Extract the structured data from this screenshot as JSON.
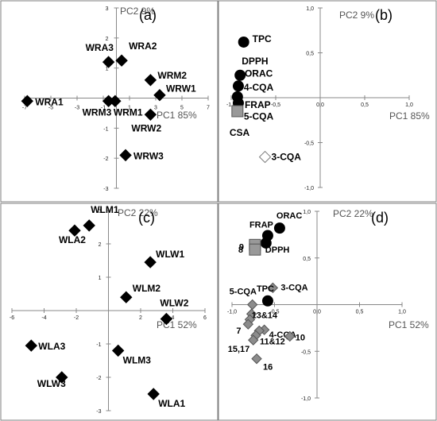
{
  "chart_data": [
    {
      "type": "scatter",
      "panel_label": "(a)",
      "pc_x": "PC1 85%",
      "pc_y": "PC2 9%",
      "xlim": [
        -7,
        7
      ],
      "ylim": [
        -3,
        3
      ],
      "x_ticks": [
        -7,
        -5,
        -3,
        -1,
        1,
        3,
        5,
        7
      ],
      "y_ticks": [
        -3,
        -2,
        -1,
        1,
        2,
        3
      ],
      "points": [
        {
          "label": "WRA1",
          "x": -6.8,
          "y": -0.1,
          "marker": "black-diamond"
        },
        {
          "label": "WRA3",
          "x": -0.6,
          "y": 1.2,
          "marker": "black-diamond"
        },
        {
          "label": "WRA2",
          "x": 0.4,
          "y": 1.25,
          "marker": "black-diamond"
        },
        {
          "label": "WRM2",
          "x": 2.6,
          "y": 0.6,
          "marker": "black-diamond"
        },
        {
          "label": "WRW1",
          "x": 3.3,
          "y": 0.1,
          "marker": "black-diamond"
        },
        {
          "label": "WRM3",
          "x": -0.6,
          "y": -0.1,
          "marker": "black-diamond"
        },
        {
          "label": "WRM1",
          "x": -0.1,
          "y": -0.1,
          "marker": "black-diamond"
        },
        {
          "label": "WRW2",
          "x": 2.6,
          "y": -0.55,
          "marker": "black-diamond"
        },
        {
          "label": "WRW3",
          "x": 0.7,
          "y": -1.9,
          "marker": "black-diamond"
        }
      ]
    },
    {
      "type": "scatter",
      "panel_label": "(b)",
      "pc_x": "PC1 85%",
      "pc_y": "PC2 9%",
      "xlim": [
        -1.0,
        1.0
      ],
      "ylim": [
        -1.0,
        1.0
      ],
      "x_ticks": [
        "-1,0",
        "-0,5",
        "0,0",
        "0,5",
        "1,0"
      ],
      "y_ticks": [
        "-1,0",
        "-0,5",
        "0,5",
        "1,0"
      ],
      "points": [
        {
          "label": "TPC",
          "x": -0.86,
          "y": 0.62,
          "marker": "black-circle"
        },
        {
          "label": "DPPH",
          "x": -0.9,
          "y": 0.25,
          "marker": "black-circle"
        },
        {
          "label": "ORAC",
          "x": -0.92,
          "y": 0.13,
          "marker": "black-circle"
        },
        {
          "label": "4-CQA",
          "x": -0.93,
          "y": 0.01,
          "marker": "black-circle"
        },
        {
          "label": "FRAP",
          "x": -0.92,
          "y": -0.06,
          "marker": "black-circle"
        },
        {
          "label": "5-CQA",
          "x": -0.93,
          "y": -0.12,
          "marker": "black-circle"
        },
        {
          "label": "CSA",
          "x": -0.93,
          "y": -0.15,
          "marker": "gray-square"
        },
        {
          "label": "3-CQA",
          "x": -0.62,
          "y": -0.66,
          "marker": "white-diamond"
        }
      ]
    },
    {
      "type": "scatter",
      "panel_label": "(c)",
      "pc_x": "PC1 52%",
      "pc_y": "PC2 22%",
      "xlim": [
        -6,
        6
      ],
      "ylim": [
        -3,
        3
      ],
      "x_ticks": [
        -6,
        -4,
        -2,
        2,
        4,
        6
      ],
      "y_ticks": [
        -3,
        -2,
        -1,
        1,
        2,
        3
      ],
      "points": [
        {
          "label": "WLA2",
          "x": -2.1,
          "y": 2.4,
          "marker": "black-diamond"
        },
        {
          "label": "WLM1",
          "x": -1.2,
          "y": 2.55,
          "marker": "black-diamond"
        },
        {
          "label": "WLW1",
          "x": 2.6,
          "y": 1.45,
          "marker": "black-diamond"
        },
        {
          "label": "WLM2",
          "x": 1.1,
          "y": 0.4,
          "marker": "black-diamond"
        },
        {
          "label": "WLW2",
          "x": 3.6,
          "y": -0.25,
          "marker": "black-diamond"
        },
        {
          "label": "WLA3",
          "x": -4.8,
          "y": -1.05,
          "marker": "black-diamond"
        },
        {
          "label": "WLM3",
          "x": 0.6,
          "y": -1.2,
          "marker": "black-diamond"
        },
        {
          "label": "WLW3",
          "x": -2.9,
          "y": -2.0,
          "marker": "black-diamond"
        },
        {
          "label": "WLA1",
          "x": 2.8,
          "y": -2.5,
          "marker": "black-diamond"
        }
      ]
    },
    {
      "type": "scatter",
      "panel_label": "(d)",
      "pc_x": "PC1 52%",
      "pc_y": "PC2 22%",
      "xlim": [
        -1.0,
        1.0
      ],
      "ylim": [
        -1.0,
        1.0
      ],
      "x_ticks": [
        "-1,0",
        "-0,5",
        "0,0",
        "0,5",
        "1,0"
      ],
      "y_ticks": [
        "-1,0",
        "-0,5",
        "0,5",
        "1,0"
      ],
      "points": [
        {
          "label": "ORAC",
          "x": -0.44,
          "y": 0.82,
          "marker": "black-circle"
        },
        {
          "label": "FRAP",
          "x": -0.58,
          "y": 0.74,
          "marker": "black-circle"
        },
        {
          "label": "DPPH",
          "x": -0.6,
          "y": 0.66,
          "marker": "black-circle"
        },
        {
          "label": "9",
          "x": -0.73,
          "y": 0.64,
          "marker": "gray-square"
        },
        {
          "label": "8",
          "x": -0.73,
          "y": 0.59,
          "marker": "gray-square"
        },
        {
          "label": "3-CQA",
          "x": -0.52,
          "y": 0.18,
          "marker": "gray-diamond"
        },
        {
          "label": "TPC",
          "x": -0.58,
          "y": 0.04,
          "marker": "black-circle"
        },
        {
          "label": "5-CQA",
          "x": -0.76,
          "y": 0.0,
          "marker": "gray-diamond"
        },
        {
          "label": "13&14",
          "x": -0.77,
          "y": -0.1,
          "marker": "gray-diamond"
        },
        {
          "label": "",
          "x": -0.79,
          "y": -0.16,
          "marker": "gray-diamond"
        },
        {
          "label": "7",
          "x": -0.81,
          "y": -0.21,
          "marker": "gray-diamond"
        },
        {
          "label": "4-CQA",
          "x": -0.62,
          "y": -0.27,
          "marker": "gray-diamond"
        },
        {
          "label": "10",
          "x": -0.32,
          "y": -0.34,
          "marker": "gray-diamond"
        },
        {
          "label": "",
          "x": -0.68,
          "y": -0.28,
          "marker": "gray-diamond"
        },
        {
          "label": "11&12",
          "x": -0.72,
          "y": -0.33,
          "marker": "gray-diamond"
        },
        {
          "label": "15,17",
          "x": -0.75,
          "y": -0.38,
          "marker": "gray-diamond"
        },
        {
          "label": "16",
          "x": -0.71,
          "y": -0.58,
          "marker": "gray-diamond"
        }
      ]
    }
  ]
}
